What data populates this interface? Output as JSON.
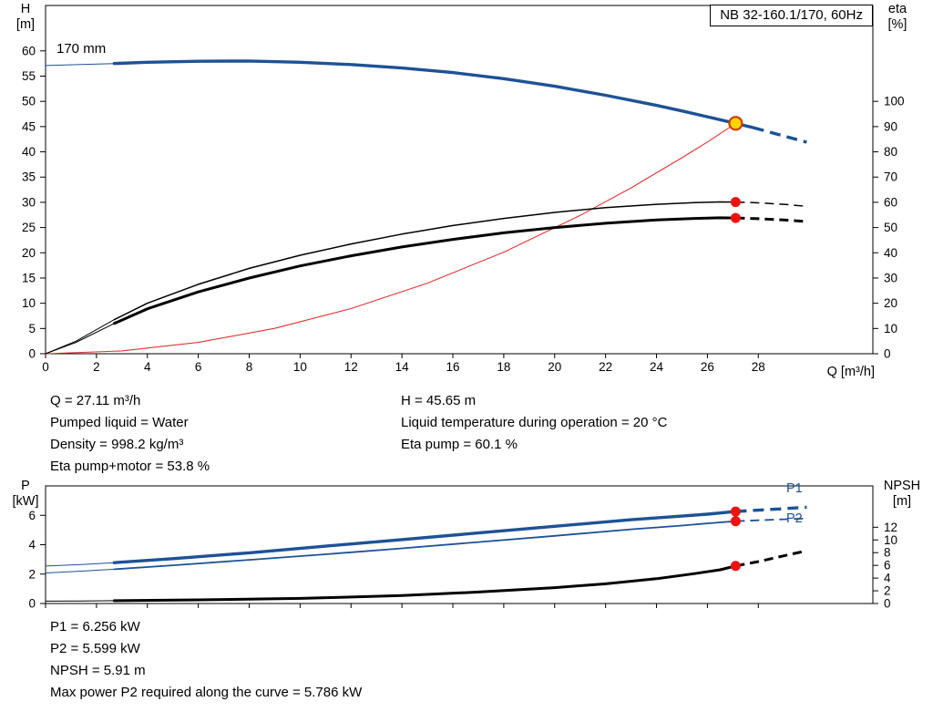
{
  "colors": {
    "curve_blue": "#1d5296",
    "curve_black": "#000000",
    "system_red": "#e03333",
    "dot_red": "#ee1111",
    "duty_fill": "#ffd400",
    "duty_stroke": "#cc3c00"
  },
  "info_top": {
    "col1": [
      "Q = 27.11 m³/h",
      "Pumped liquid = Water",
      "Density = 998.2 kg/m³",
      "Eta pump+motor = 53.8 %"
    ],
    "col2": [
      "H = 45.65 m",
      "Liquid temperature during operation = 20 °C",
      "Eta pump = 60.1 %"
    ]
  },
  "info_bottom": [
    "P1 = 6.256 kW",
    "P2 = 5.599 kW",
    "NPSH = 5.91 m",
    "Max power P2 required along the curve = 5.786 kW"
  ],
  "chart_data": [
    {
      "type": "line",
      "title": "NB 32-160.1/170, 60Hz",
      "x": {
        "label": "Q [m³/h]",
        "min": 0,
        "max": 32.5,
        "ticks": [
          0,
          2,
          4,
          6,
          8,
          10,
          12,
          14,
          16,
          18,
          20,
          22,
          24,
          26,
          28
        ],
        "show_labels": true
      },
      "y_left": {
        "label_lines": [
          "H",
          "[m]"
        ],
        "min": 0,
        "max": 69,
        "ticks": [
          0,
          5,
          10,
          15,
          20,
          25,
          30,
          35,
          40,
          45,
          50,
          55,
          60
        ]
      },
      "y_right": {
        "label_lines": [
          "eta",
          "[%]"
        ],
        "min": 0,
        "max": 138,
        "ticks": [
          0,
          10,
          20,
          30,
          40,
          50,
          60,
          70,
          80,
          90,
          100
        ]
      },
      "series": [
        {
          "name": "system-curve",
          "axis": "left",
          "color": "system_red",
          "width": 1.1,
          "solid": [
            [
              0,
              0
            ],
            [
              3,
              0.56
            ],
            [
              6,
              2.24
            ],
            [
              9,
              5.03
            ],
            [
              12,
              8.95
            ],
            [
              15,
              13.98
            ],
            [
              18,
              20.13
            ],
            [
              21,
              27.4
            ],
            [
              23,
              32.86
            ],
            [
              25,
              38.83
            ],
            [
              26,
              41.95
            ],
            [
              27.11,
              45.65
            ]
          ]
        },
        {
          "name": "eta-pump",
          "axis": "right",
          "color": "curve_black",
          "width": 1.5,
          "thin": [
            [
              0,
              0
            ],
            [
              1.2,
              5
            ],
            [
              2.7,
              13.5
            ]
          ],
          "solid": [
            [
              2.7,
              13.5
            ],
            [
              4,
              20
            ],
            [
              6,
              27.5
            ],
            [
              8,
              33.8
            ],
            [
              10,
              39
            ],
            [
              12,
              43.5
            ],
            [
              14,
              47.4
            ],
            [
              16,
              50.8
            ],
            [
              18,
              53.6
            ],
            [
              20,
              56
            ],
            [
              22,
              57.9
            ],
            [
              24,
              59.2
            ],
            [
              25.5,
              59.9
            ],
            [
              26.5,
              60.15
            ],
            [
              27.11,
              60.1
            ]
          ],
          "dash": [
            [
              27.11,
              60.1
            ],
            [
              28,
              59.8
            ],
            [
              29,
              59.2
            ],
            [
              29.9,
              58.4
            ]
          ]
        },
        {
          "name": "eta-pump-motor",
          "axis": "right",
          "color": "curve_black",
          "width": 3,
          "thin": [
            [
              0,
              0
            ],
            [
              1.2,
              4.5
            ],
            [
              2.7,
              12
            ]
          ],
          "solid": [
            [
              2.7,
              12
            ],
            [
              4,
              17.8
            ],
            [
              6,
              24.5
            ],
            [
              8,
              30
            ],
            [
              10,
              34.8
            ],
            [
              12,
              38.8
            ],
            [
              14,
              42.3
            ],
            [
              16,
              45.3
            ],
            [
              18,
              47.9
            ],
            [
              20,
              50
            ],
            [
              22,
              51.7
            ],
            [
              24,
              53
            ],
            [
              25.5,
              53.6
            ],
            [
              26.5,
              53.85
            ],
            [
              27.11,
              53.8
            ]
          ],
          "dash": [
            [
              27.11,
              53.8
            ],
            [
              28,
              53.5
            ],
            [
              29,
              53
            ],
            [
              29.9,
              52.4
            ]
          ]
        },
        {
          "name": "head-curve",
          "label": "170 mm",
          "axis": "left",
          "color": "curve_blue",
          "width": 3.4,
          "dash_pattern": "12 7",
          "thin": [
            [
              0,
              57.1
            ],
            [
              1.4,
              57.3
            ],
            [
              2.7,
              57.5
            ]
          ],
          "solid": [
            [
              2.7,
              57.5
            ],
            [
              4,
              57.75
            ],
            [
              6,
              57.95
            ],
            [
              8,
              58
            ],
            [
              10,
              57.75
            ],
            [
              12,
              57.3
            ],
            [
              14,
              56.6
            ],
            [
              16,
              55.7
            ],
            [
              18,
              54.5
            ],
            [
              20,
              53
            ],
            [
              22,
              51.2
            ],
            [
              24,
              49.2
            ],
            [
              25,
              48.1
            ],
            [
              26,
              46.95
            ],
            [
              27.11,
              45.65
            ],
            [
              27.8,
              44.8
            ]
          ],
          "dash": [
            [
              27.8,
              44.8
            ],
            [
              28.6,
              43.7
            ],
            [
              29.4,
              42.6
            ],
            [
              29.9,
              41.9
            ]
          ]
        }
      ],
      "markers": [
        {
          "kind": "dot",
          "axis": "right",
          "q": 27.11,
          "v": 60.1
        },
        {
          "kind": "dot",
          "axis": "right",
          "q": 27.11,
          "v": 53.8
        },
        {
          "kind": "duty",
          "axis": "left",
          "q": 27.11,
          "v": 45.65
        }
      ]
    },
    {
      "type": "line",
      "x": {
        "label": "",
        "min": 0,
        "max": 32.5,
        "ticks": [
          0,
          2,
          4,
          6,
          8,
          10,
          12,
          14,
          16,
          18,
          20,
          22,
          24,
          26,
          28
        ],
        "show_labels": false
      },
      "y_left": {
        "label_lines": [
          "P",
          "[kW]"
        ],
        "min": 0,
        "max": 8,
        "ticks": [
          0,
          2,
          4,
          6
        ]
      },
      "y_right": {
        "label_lines": [
          "NPSH",
          "[m]"
        ],
        "min": 0,
        "max": 18.5,
        "ticks": [
          0,
          2,
          4,
          6,
          8,
          10,
          12
        ]
      },
      "series": [
        {
          "name": "npsh-curve",
          "axis": "right",
          "color": "curve_black",
          "width": 3,
          "thin": [
            [
              0,
              0.38
            ],
            [
              1.4,
              0.4
            ],
            [
              2.7,
              0.44
            ]
          ],
          "solid": [
            [
              2.7,
              0.44
            ],
            [
              6,
              0.58
            ],
            [
              10,
              0.8
            ],
            [
              14,
              1.25
            ],
            [
              17,
              1.8
            ],
            [
              20,
              2.5
            ],
            [
              22,
              3.1
            ],
            [
              24,
              3.9
            ],
            [
              25.5,
              4.7
            ],
            [
              26.5,
              5.3
            ],
            [
              27.11,
              5.91
            ]
          ],
          "dash": [
            [
              27.11,
              5.91
            ],
            [
              28,
              6.6
            ],
            [
              29,
              7.5
            ],
            [
              29.9,
              8.3
            ]
          ]
        },
        {
          "name": "p2-curve",
          "label": "P2",
          "axis": "left",
          "color": "curve_blue",
          "width": 1.8,
          "thin": [
            [
              0,
              2.08
            ],
            [
              1.4,
              2.2
            ],
            [
              2.7,
              2.33
            ]
          ],
          "solid": [
            [
              2.7,
              2.33
            ],
            [
              5,
              2.6
            ],
            [
              8,
              2.97
            ],
            [
              11,
              3.35
            ],
            [
              14,
              3.75
            ],
            [
              17,
              4.18
            ],
            [
              20,
              4.6
            ],
            [
              23,
              5.05
            ],
            [
              25,
              5.3
            ],
            [
              26,
              5.45
            ],
            [
              27.11,
              5.599
            ]
          ],
          "dash": [
            [
              27.11,
              5.599
            ],
            [
              28,
              5.66
            ],
            [
              29,
              5.73
            ],
            [
              29.9,
              5.786
            ]
          ]
        },
        {
          "name": "p1-curve",
          "label": "P1",
          "axis": "left",
          "color": "curve_blue",
          "width": 3.4,
          "dash_pattern": "12 7",
          "thin": [
            [
              0,
              2.55
            ],
            [
              1.4,
              2.65
            ],
            [
              2.7,
              2.78
            ]
          ],
          "solid": [
            [
              2.7,
              2.78
            ],
            [
              5,
              3.05
            ],
            [
              8,
              3.45
            ],
            [
              11,
              3.9
            ],
            [
              14,
              4.35
            ],
            [
              17,
              4.8
            ],
            [
              20,
              5.25
            ],
            [
              23,
              5.7
            ],
            [
              25,
              5.95
            ],
            [
              26,
              6.08
            ],
            [
              27.11,
              6.256
            ]
          ],
          "dash": [
            [
              27.11,
              6.256
            ],
            [
              28,
              6.35
            ],
            [
              29,
              6.45
            ],
            [
              29.9,
              6.55
            ]
          ]
        }
      ],
      "markers": [
        {
          "kind": "dot",
          "axis": "left",
          "q": 27.11,
          "v": 6.256
        },
        {
          "kind": "dot",
          "axis": "left",
          "q": 27.11,
          "v": 5.599
        },
        {
          "kind": "dot",
          "axis": "right",
          "q": 27.11,
          "v": 5.91
        }
      ]
    }
  ]
}
